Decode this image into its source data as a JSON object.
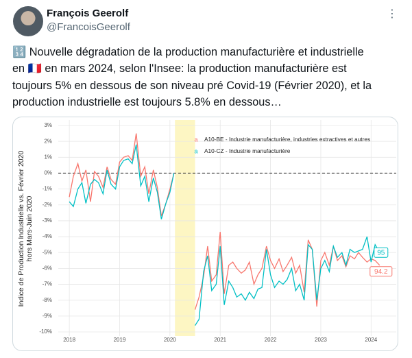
{
  "tweet": {
    "author": "François Geerolf",
    "handle": "@FrancoisGeerolf",
    "text_lines": [
      "🔢 Nouvelle dégradation de la production manufacturière et industrielle",
      "en 🇫🇷 en mars 2024, selon l'Insee: la production manufacturière est",
      "toujours 5% en dessous de son niveau pré Covid-19 (Février 2020), et la",
      "production industrielle est toujours 5.8% en dessous…"
    ]
  },
  "chart_data": {
    "type": "line",
    "ylabel": [
      "Indice de Production Industrielle vs. Février 2020",
      "hors Mars-Juin 2020"
    ],
    "xlim": [
      2017.78,
      2024.5
    ],
    "ylim": [
      -10,
      3
    ],
    "xticks": [
      2018,
      2019,
      2020,
      2021,
      2022,
      2023,
      2024
    ],
    "yticks": [
      {
        "value": 3,
        "label": "3%"
      },
      {
        "value": 2,
        "label": "2%"
      },
      {
        "value": 1,
        "label": "1%"
      },
      {
        "value": 0,
        "label": "0%"
      },
      {
        "value": -1,
        "label": "-1%"
      },
      {
        "value": -2,
        "label": "-2%"
      },
      {
        "value": -3,
        "label": "-3%"
      },
      {
        "value": -4,
        "label": "-4%"
      },
      {
        "value": -5,
        "label": "-5%"
      },
      {
        "value": -6,
        "label": "-6%"
      },
      {
        "value": -7,
        "label": "-7%"
      },
      {
        "value": -8,
        "label": "-8%"
      },
      {
        "value": -9,
        "label": "-9%"
      },
      {
        "value": -10,
        "label": "-10%"
      }
    ],
    "grid": true,
    "hline": 0,
    "shade": [
      2020.1,
      2020.5
    ],
    "shade_color": "#fdf6c3",
    "legend": "top-right",
    "x": [
      2018.0,
      2018.08,
      2018.17,
      2018.25,
      2018.33,
      2018.42,
      2018.5,
      2018.58,
      2018.67,
      2018.75,
      2018.83,
      2018.92,
      2019.0,
      2019.08,
      2019.17,
      2019.25,
      2019.33,
      2019.42,
      2019.5,
      2019.58,
      2019.67,
      2019.75,
      2019.83,
      2019.92,
      2020.0,
      2020.08,
      2020.17,
      2020.25,
      2020.33,
      2020.42,
      2020.5,
      2020.58,
      2020.67,
      2020.75,
      2020.83,
      2020.92,
      2021.0,
      2021.08,
      2021.17,
      2021.25,
      2021.33,
      2021.42,
      2021.5,
      2021.58,
      2021.67,
      2021.75,
      2021.83,
      2021.92,
      2022.0,
      2022.08,
      2022.17,
      2022.25,
      2022.33,
      2022.42,
      2022.5,
      2022.58,
      2022.67,
      2022.75,
      2022.83,
      2022.92,
      2023.0,
      2023.08,
      2023.17,
      2023.25,
      2023.33,
      2023.42,
      2023.5,
      2023.58,
      2023.67,
      2023.75,
      2023.83,
      2023.92,
      2024.0,
      2024.08,
      2024.17
    ],
    "series": [
      {
        "name": "A10-BE - Industrie manufacturière, industries extractives et autres",
        "color": "#F8766D",
        "end_label": "94.2",
        "values": [
          -1.5,
          -0.2,
          0.6,
          -0.5,
          0.2,
          -1.8,
          0.1,
          -0.2,
          -0.9,
          0.4,
          -0.4,
          -0.7,
          0.7,
          1.0,
          1.1,
          0.8,
          2.5,
          -0.2,
          0.4,
          -1.3,
          0.2,
          -0.9,
          -2.7,
          -1.9,
          -1.0,
          0,
          null,
          null,
          null,
          null,
          -8.6,
          -7.8,
          -6.5,
          -4.6,
          -6.8,
          -6.4,
          -3.7,
          -7.6,
          -5.8,
          -5.6,
          -6.0,
          -6.3,
          -6.1,
          -5.6,
          -7.0,
          -6.4,
          -6.0,
          -4.6,
          -5.5,
          -6.0,
          -5.4,
          -6.2,
          -5.8,
          -5.3,
          -6.3,
          -5.8,
          -7.5,
          -4.2,
          -4.8,
          -8.4,
          -5.5,
          -5.0,
          -5.8,
          -4.6,
          -5.5,
          -5.2,
          -5.9,
          -5.2,
          -5.4,
          -5.0,
          -5.3,
          -5.6,
          -5.4,
          -5.5,
          -5.8
        ]
      },
      {
        "name": "A10-CZ - Industrie manufacturière",
        "color": "#00BFC4",
        "end_label": "95",
        "values": [
          -1.8,
          -2.1,
          -1.0,
          -0.6,
          -1.9,
          -0.7,
          -0.4,
          -0.6,
          -1.3,
          0.2,
          -0.7,
          -1.0,
          0.4,
          0.8,
          0.9,
          0.6,
          1.8,
          -0.8,
          -0.2,
          -1.8,
          -0.3,
          -1.2,
          -2.9,
          -1.9,
          -1.2,
          0,
          null,
          null,
          null,
          null,
          -9.6,
          -9.2,
          -6.2,
          -5.2,
          -7.4,
          -7.0,
          -4.6,
          -8.3,
          -6.8,
          -7.2,
          -7.8,
          -7.6,
          -8.0,
          -7.5,
          -7.9,
          -7.3,
          -7.2,
          -4.8,
          -6.4,
          -7.2,
          -6.8,
          -7.0,
          -6.7,
          -6.0,
          -7.4,
          -7.0,
          -8.0,
          -4.5,
          -4.8,
          -8.0,
          -6.0,
          -5.5,
          -6.2,
          -4.6,
          -5.3,
          -5.0,
          -5.8,
          -4.8,
          -5.0,
          -4.9,
          -4.8,
          -4.0,
          -5.6,
          -4.5,
          -5.0
        ]
      }
    ]
  }
}
